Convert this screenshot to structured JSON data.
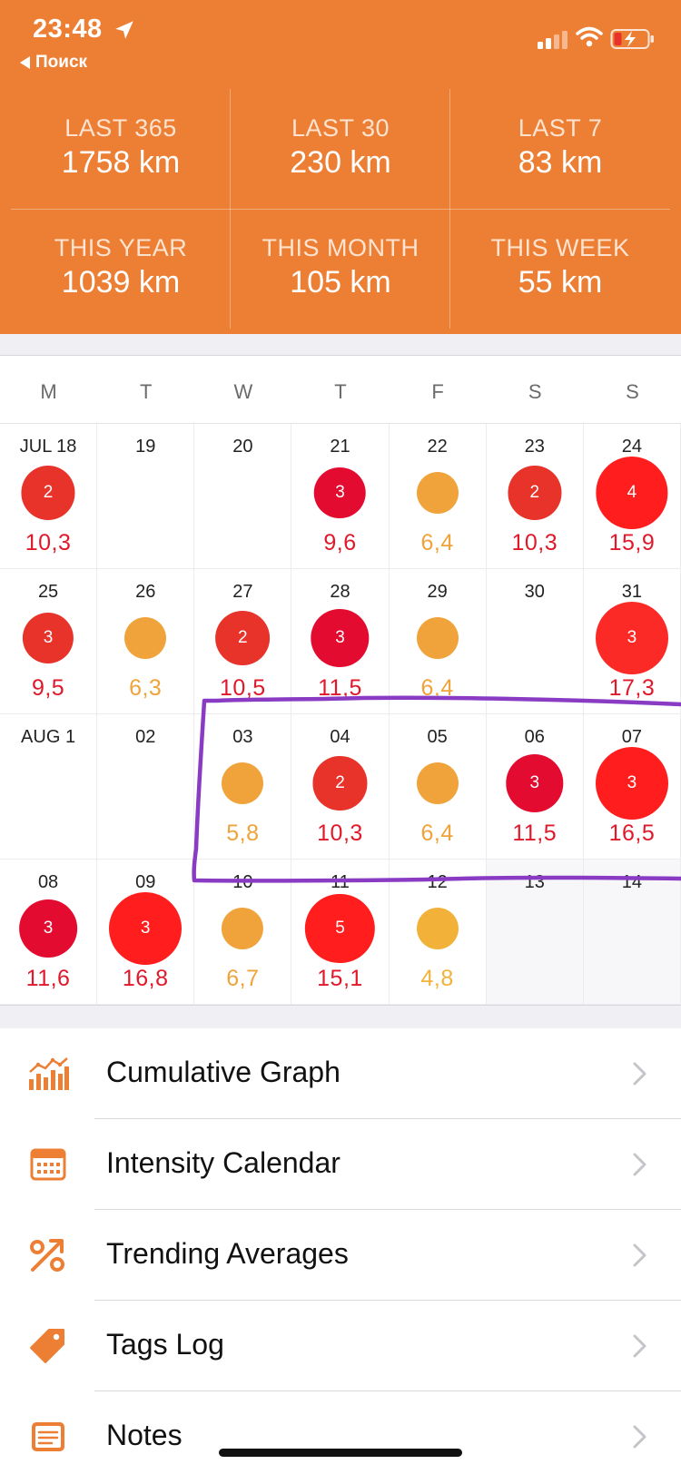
{
  "status_bar": {
    "time": "23:48",
    "back_label": "Поиск"
  },
  "colors": {
    "header": "#ed7f35",
    "level_orange": "#f0a33a",
    "level_red": "#e8332b",
    "level_deep_red": "#e30b2f",
    "level_bright_red": "#ff1d1d",
    "annotation": "#8a3bc4",
    "menu_icon": "#ed7f35"
  },
  "stats": [
    {
      "label": "LAST 365",
      "value": "1758 km"
    },
    {
      "label": "LAST 30",
      "value": "230 km"
    },
    {
      "label": "LAST 7",
      "value": "83 km"
    },
    {
      "label": "THIS YEAR",
      "value": "1039 km"
    },
    {
      "label": "THIS MONTH",
      "value": "105 km"
    },
    {
      "label": "THIS WEEK",
      "value": "55 km"
    }
  ],
  "weekdays": [
    "M",
    "T",
    "W",
    "T",
    "F",
    "S",
    "S"
  ],
  "calendar": [
    [
      {
        "day": "JUL 18",
        "count": "2",
        "distance": "10,3",
        "color": "#e8332b"
      },
      {
        "day": "19",
        "count": "",
        "distance": "",
        "color": ""
      },
      {
        "day": "20",
        "count": "",
        "distance": "",
        "color": ""
      },
      {
        "day": "21",
        "count": "3",
        "distance": "9,6",
        "color": "#e30b2f"
      },
      {
        "day": "22",
        "count": "",
        "distance": "6,4",
        "color": "#f0a33a"
      },
      {
        "day": "23",
        "count": "2",
        "distance": "10,3",
        "color": "#e8332b"
      },
      {
        "day": "24",
        "count": "4",
        "distance": "15,9",
        "color": "#ff1d1d"
      }
    ],
    [
      {
        "day": "25",
        "count": "3",
        "distance": "9,5",
        "color": "#e8332b"
      },
      {
        "day": "26",
        "count": "",
        "distance": "6,3",
        "color": "#f0a33a"
      },
      {
        "day": "27",
        "count": "2",
        "distance": "10,5",
        "color": "#e8332b"
      },
      {
        "day": "28",
        "count": "3",
        "distance": "11,5",
        "color": "#e30b2f"
      },
      {
        "day": "29",
        "count": "",
        "distance": "6,4",
        "color": "#f0a33a"
      },
      {
        "day": "30",
        "count": "",
        "distance": "",
        "color": ""
      },
      {
        "day": "31",
        "count": "3",
        "distance": "17,3",
        "color": "#fb2a26"
      }
    ],
    [
      {
        "day": "AUG 1",
        "count": "",
        "distance": "",
        "color": ""
      },
      {
        "day": "02",
        "count": "",
        "distance": "",
        "color": ""
      },
      {
        "day": "03",
        "count": "",
        "distance": "5,8",
        "color": "#f0a33a"
      },
      {
        "day": "04",
        "count": "2",
        "distance": "10,3",
        "color": "#e8332b"
      },
      {
        "day": "05",
        "count": "",
        "distance": "6,4",
        "color": "#f0a33a"
      },
      {
        "day": "06",
        "count": "3",
        "distance": "11,5",
        "color": "#e30b2f"
      },
      {
        "day": "07",
        "count": "3",
        "distance": "16,5",
        "color": "#ff1d1d"
      }
    ],
    [
      {
        "day": "08",
        "count": "3",
        "distance": "11,6",
        "color": "#e30b2f"
      },
      {
        "day": "09",
        "count": "3",
        "distance": "16,8",
        "color": "#ff1d1d"
      },
      {
        "day": "10",
        "count": "",
        "distance": "6,7",
        "color": "#f0a33a"
      },
      {
        "day": "11",
        "count": "5",
        "distance": "15,1",
        "color": "#ff1d1d"
      },
      {
        "day": "12",
        "count": "",
        "distance": "4,8",
        "color": "#f2b23a"
      },
      {
        "day": "13",
        "count": "",
        "distance": "",
        "color": ""
      },
      {
        "day": "14",
        "count": "",
        "distance": "",
        "color": ""
      }
    ]
  ],
  "menu": [
    {
      "label": "Cumulative Graph",
      "icon": "cumulative-graph-icon"
    },
    {
      "label": "Intensity Calendar",
      "icon": "calendar-icon"
    },
    {
      "label": "Trending Averages",
      "icon": "percent-trend-icon"
    },
    {
      "label": "Tags Log",
      "icon": "tag-icon"
    },
    {
      "label": "Notes",
      "icon": "notes-icon"
    }
  ]
}
